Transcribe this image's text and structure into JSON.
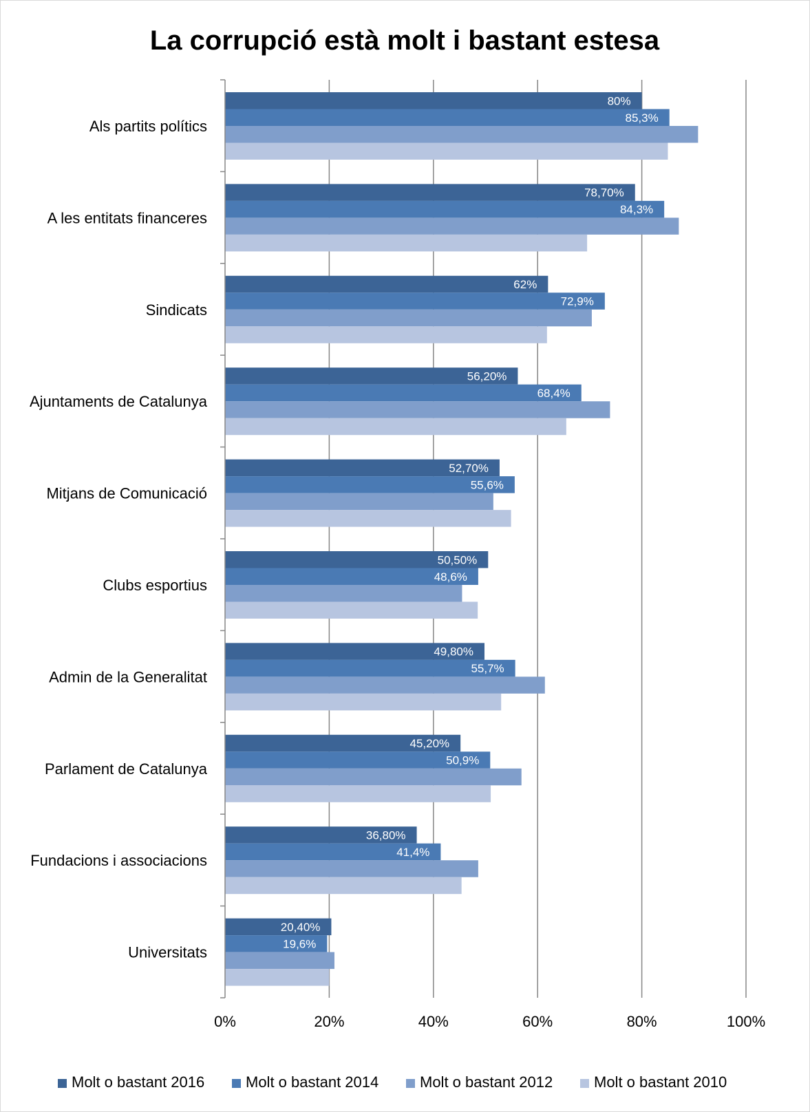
{
  "chart_data": {
    "type": "bar",
    "orientation": "horizontal",
    "title": "La corrupció està molt i bastant estesa",
    "categories": [
      "Als partits polítics",
      "A les entitats financeres",
      "Sindicats",
      "Ajuntaments de Catalunya",
      "Mitjans de Comunicació",
      "Clubs esportius",
      "Admin de la Generalitat",
      "Parlament de Catalunya",
      "Fundacions i associacions",
      "Universitats"
    ],
    "series": [
      {
        "name": "Molt o bastant 2016",
        "color": "#3c6496",
        "values": [
          80,
          78.7,
          62,
          56.2,
          52.7,
          50.5,
          49.8,
          45.2,
          36.8,
          20.4
        ],
        "labels": [
          "80%",
          "78,70%",
          "62%",
          "56,20%",
          "52,70%",
          "50,50%",
          "49,80%",
          "45,20%",
          "36,80%",
          "20,40%"
        ]
      },
      {
        "name": "Molt o bastant 2014",
        "color": "#4a7ab4",
        "values": [
          85.3,
          84.3,
          72.9,
          68.4,
          55.6,
          48.6,
          55.7,
          50.9,
          41.4,
          19.6
        ],
        "labels": [
          "85,3%",
          "84,3%",
          "72,9%",
          "68,4%",
          "55,6%",
          "48,6%",
          "55,7%",
          "50,9%",
          "41,4%",
          "19,6%"
        ]
      },
      {
        "name": "Molt o bastant 2012",
        "color": "#809ecb",
        "values": [
          90.8,
          87.1,
          70.4,
          73.9,
          51.5,
          45.5,
          61.4,
          56.9,
          48.6,
          21.0
        ],
        "labels": []
      },
      {
        "name": "Molt o bastant 2010",
        "color": "#b7c5e0",
        "values": [
          85.0,
          69.5,
          61.8,
          65.5,
          54.9,
          48.5,
          53.0,
          51.0,
          45.4,
          20.0
        ],
        "labels": []
      }
    ],
    "xlim": [
      0,
      100
    ],
    "xticks": [
      0,
      20,
      40,
      60,
      80,
      100
    ],
    "xtick_labels": [
      "0%",
      "20%",
      "40%",
      "60%",
      "80%",
      "100%"
    ],
    "xlabel": "",
    "ylabel": "",
    "grid": "vertical",
    "legend": "bottom",
    "label_color": "#ffffff"
  }
}
